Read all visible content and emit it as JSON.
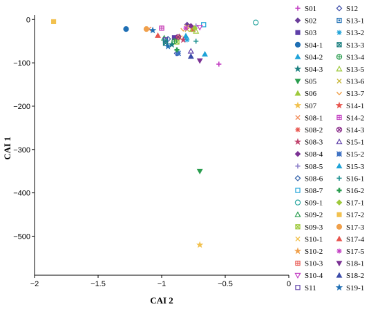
{
  "chart_data": {
    "type": "scatter",
    "xlabel": "CAI 2",
    "ylabel": "CAI 1",
    "xlim": [
      -2,
      0
    ],
    "ylim": [
      -590,
      10
    ],
    "x_ticks": [
      -2,
      -1.5,
      -1,
      -0.5,
      0
    ],
    "x_tick_labels": [
      "−2",
      "−1.5",
      "−1",
      "−0.5",
      "0"
    ],
    "y_ticks": [
      0,
      -100,
      -200,
      -300,
      -400,
      -500
    ],
    "y_tick_labels": [
      "0",
      "−100",
      "−200",
      "−300",
      "−400",
      "−500"
    ],
    "grid": false,
    "legend_position": "right",
    "series": [
      {
        "name": "S01",
        "color": "#c33fc3",
        "marker": "plus",
        "points": [
          [
            -0.55,
            -103
          ]
        ]
      },
      {
        "name": "S02",
        "color": "#6a3d9a",
        "marker": "diamond",
        "points": [
          [
            -0.8,
            -12
          ]
        ]
      },
      {
        "name": "S03",
        "color": "#5e3fa8",
        "marker": "square",
        "points": [
          [
            -0.9,
            -42
          ]
        ]
      },
      {
        "name": "S04-1",
        "color": "#1f6fb4",
        "marker": "circle",
        "points": [
          [
            -1.28,
            -22
          ]
        ]
      },
      {
        "name": "S04-2",
        "color": "#1fa3d8",
        "marker": "triangle-up",
        "points": [
          [
            -0.81,
            -38
          ]
        ]
      },
      {
        "name": "S04-3",
        "color": "#1a7f7f",
        "marker": "star",
        "points": [
          [
            -0.92,
            -58
          ]
        ]
      },
      {
        "name": "S05",
        "color": "#2a9d4f",
        "marker": "triangle-down",
        "points": [
          [
            -0.7,
            -350
          ]
        ]
      },
      {
        "name": "S06",
        "color": "#9ec93c",
        "marker": "triangle-up",
        "points": [
          [
            -0.76,
            -23
          ]
        ]
      },
      {
        "name": "S07",
        "color": "#f2c14e",
        "marker": "star",
        "points": [
          [
            -0.7,
            -520
          ]
        ]
      },
      {
        "name": "S08-1",
        "color": "#f28c58",
        "marker": "x",
        "points": [
          [
            -1.1,
            -22
          ]
        ]
      },
      {
        "name": "S08-2",
        "color": "#e8554e",
        "marker": "asterisk",
        "points": [
          [
            -0.87,
            -42
          ]
        ]
      },
      {
        "name": "S08-3",
        "color": "#c0446e",
        "marker": "star",
        "points": [
          [
            -0.83,
            -47
          ]
        ]
      },
      {
        "name": "S08-4",
        "color": "#7b3294",
        "marker": "diamond",
        "points": [
          [
            -0.77,
            -15
          ]
        ]
      },
      {
        "name": "S08-5",
        "color": "#8c7fc9",
        "marker": "plus",
        "points": [
          [
            -0.73,
            -15
          ]
        ]
      },
      {
        "name": "S08-6",
        "color": "#2f5fa8",
        "marker": "diamond-open",
        "points": [
          [
            -0.95,
            -45
          ]
        ]
      },
      {
        "name": "S08-7",
        "color": "#1fa3d8",
        "marker": "square-open",
        "points": [
          [
            -0.67,
            -12
          ]
        ]
      },
      {
        "name": "S09-1",
        "color": "#2aa6a0",
        "marker": "circle-open",
        "points": [
          [
            -0.26,
            -7
          ]
        ]
      },
      {
        "name": "S09-2",
        "color": "#2a9d4f",
        "marker": "triangle-open",
        "points": [
          [
            -0.98,
            -43
          ]
        ]
      },
      {
        "name": "S09-3",
        "color": "#9ec93c",
        "marker": "square-x",
        "points": [
          [
            -0.88,
            -52
          ]
        ]
      },
      {
        "name": "S10-1",
        "color": "#f2c14e",
        "marker": "x",
        "points": [
          [
            -0.8,
            -17
          ]
        ]
      },
      {
        "name": "S10-2",
        "color": "#f0a04b",
        "marker": "star",
        "points": [
          [
            -0.86,
            -40
          ]
        ]
      },
      {
        "name": "S10-3",
        "color": "#e8554e",
        "marker": "square-plus",
        "points": [
          [
            -1.0,
            -20
          ]
        ]
      },
      {
        "name": "S10-4",
        "color": "#c33fc3",
        "marker": "triangle-down-open",
        "points": [
          [
            -0.7,
            -18
          ]
        ]
      },
      {
        "name": "S11",
        "color": "#5e3fa8",
        "marker": "square-open",
        "points": [
          [
            -0.97,
            -47
          ]
        ]
      },
      {
        "name": "S12",
        "color": "#3b4ba8",
        "marker": "diamond-open",
        "points": [
          [
            -0.88,
            -78
          ]
        ]
      },
      {
        "name": "S13-1",
        "color": "#1f6fb4",
        "marker": "square-dot",
        "points": [
          [
            -0.97,
            -50
          ]
        ]
      },
      {
        "name": "S13-2",
        "color": "#1fa3d8",
        "marker": "asterisk",
        "points": [
          [
            -0.8,
            -47
          ]
        ]
      },
      {
        "name": "S13-3",
        "color": "#1a7f7f",
        "marker": "square-x",
        "points": [
          [
            -0.97,
            -55
          ]
        ]
      },
      {
        "name": "S13-4",
        "color": "#2a9d4f",
        "marker": "circle-plus",
        "points": [
          [
            -0.9,
            -50
          ]
        ]
      },
      {
        "name": "S13-5",
        "color": "#9ec93c",
        "marker": "triangle-open",
        "points": [
          [
            -0.73,
            -27
          ]
        ]
      },
      {
        "name": "S13-6",
        "color": "#c9b83c",
        "marker": "x",
        "points": [
          [
            -0.8,
            -23
          ]
        ]
      },
      {
        "name": "S13-7",
        "color": "#f0a04b",
        "marker": "chevron",
        "points": [
          [
            -0.83,
            -23
          ]
        ]
      },
      {
        "name": "S14-1",
        "color": "#e8554e",
        "marker": "star",
        "points": [
          [
            -0.75,
            -22
          ]
        ]
      },
      {
        "name": "S14-2",
        "color": "#c33fc3",
        "marker": "square-plus",
        "points": [
          [
            -1.0,
            -20
          ]
        ]
      },
      {
        "name": "S14-3",
        "color": "#8a2c8a",
        "marker": "circle-x",
        "points": [
          [
            -0.87,
            -40
          ]
        ]
      },
      {
        "name": "S15-1",
        "color": "#5e3fa8",
        "marker": "triangle-open",
        "points": [
          [
            -0.77,
            -73
          ]
        ]
      },
      {
        "name": "S15-2",
        "color": "#3b6fc2",
        "marker": "gear",
        "points": [
          [
            -0.87,
            -78
          ]
        ]
      },
      {
        "name": "S15-3",
        "color": "#1fa3d8",
        "marker": "triangle-up",
        "points": [
          [
            -0.66,
            -80
          ]
        ]
      },
      {
        "name": "S16-1",
        "color": "#1a8f8f",
        "marker": "plus",
        "points": [
          [
            -0.73,
            -50
          ]
        ]
      },
      {
        "name": "S16-2",
        "color": "#2a9d4f",
        "marker": "plus-bold",
        "points": [
          [
            -0.88,
            -70
          ]
        ]
      },
      {
        "name": "S17-1",
        "color": "#9ec93c",
        "marker": "diamond",
        "points": [
          [
            -0.74,
            -20
          ]
        ]
      },
      {
        "name": "S17-2",
        "color": "#f2c14e",
        "marker": "square",
        "points": [
          [
            -1.85,
            -5
          ]
        ]
      },
      {
        "name": "S17-3",
        "color": "#f0a04b",
        "marker": "circle",
        "points": [
          [
            -1.12,
            -22
          ]
        ]
      },
      {
        "name": "S17-4",
        "color": "#e8554e",
        "marker": "triangle-up",
        "points": [
          [
            -1.03,
            -37
          ]
        ]
      },
      {
        "name": "S17-5",
        "color": "#c33fc3",
        "marker": "asterisk",
        "points": [
          [
            -0.81,
            -20
          ]
        ]
      },
      {
        "name": "S18-1",
        "color": "#7b3294",
        "marker": "triangle-down",
        "points": [
          [
            -0.7,
            -95
          ]
        ]
      },
      {
        "name": "S18-2",
        "color": "#3b4ba8",
        "marker": "triangle-up",
        "points": [
          [
            -0.77,
            -85
          ]
        ]
      },
      {
        "name": "S19-1",
        "color": "#1f6fb4",
        "marker": "star",
        "points": [
          [
            -1.07,
            -25
          ],
          [
            -0.95,
            -62
          ]
        ]
      }
    ]
  }
}
